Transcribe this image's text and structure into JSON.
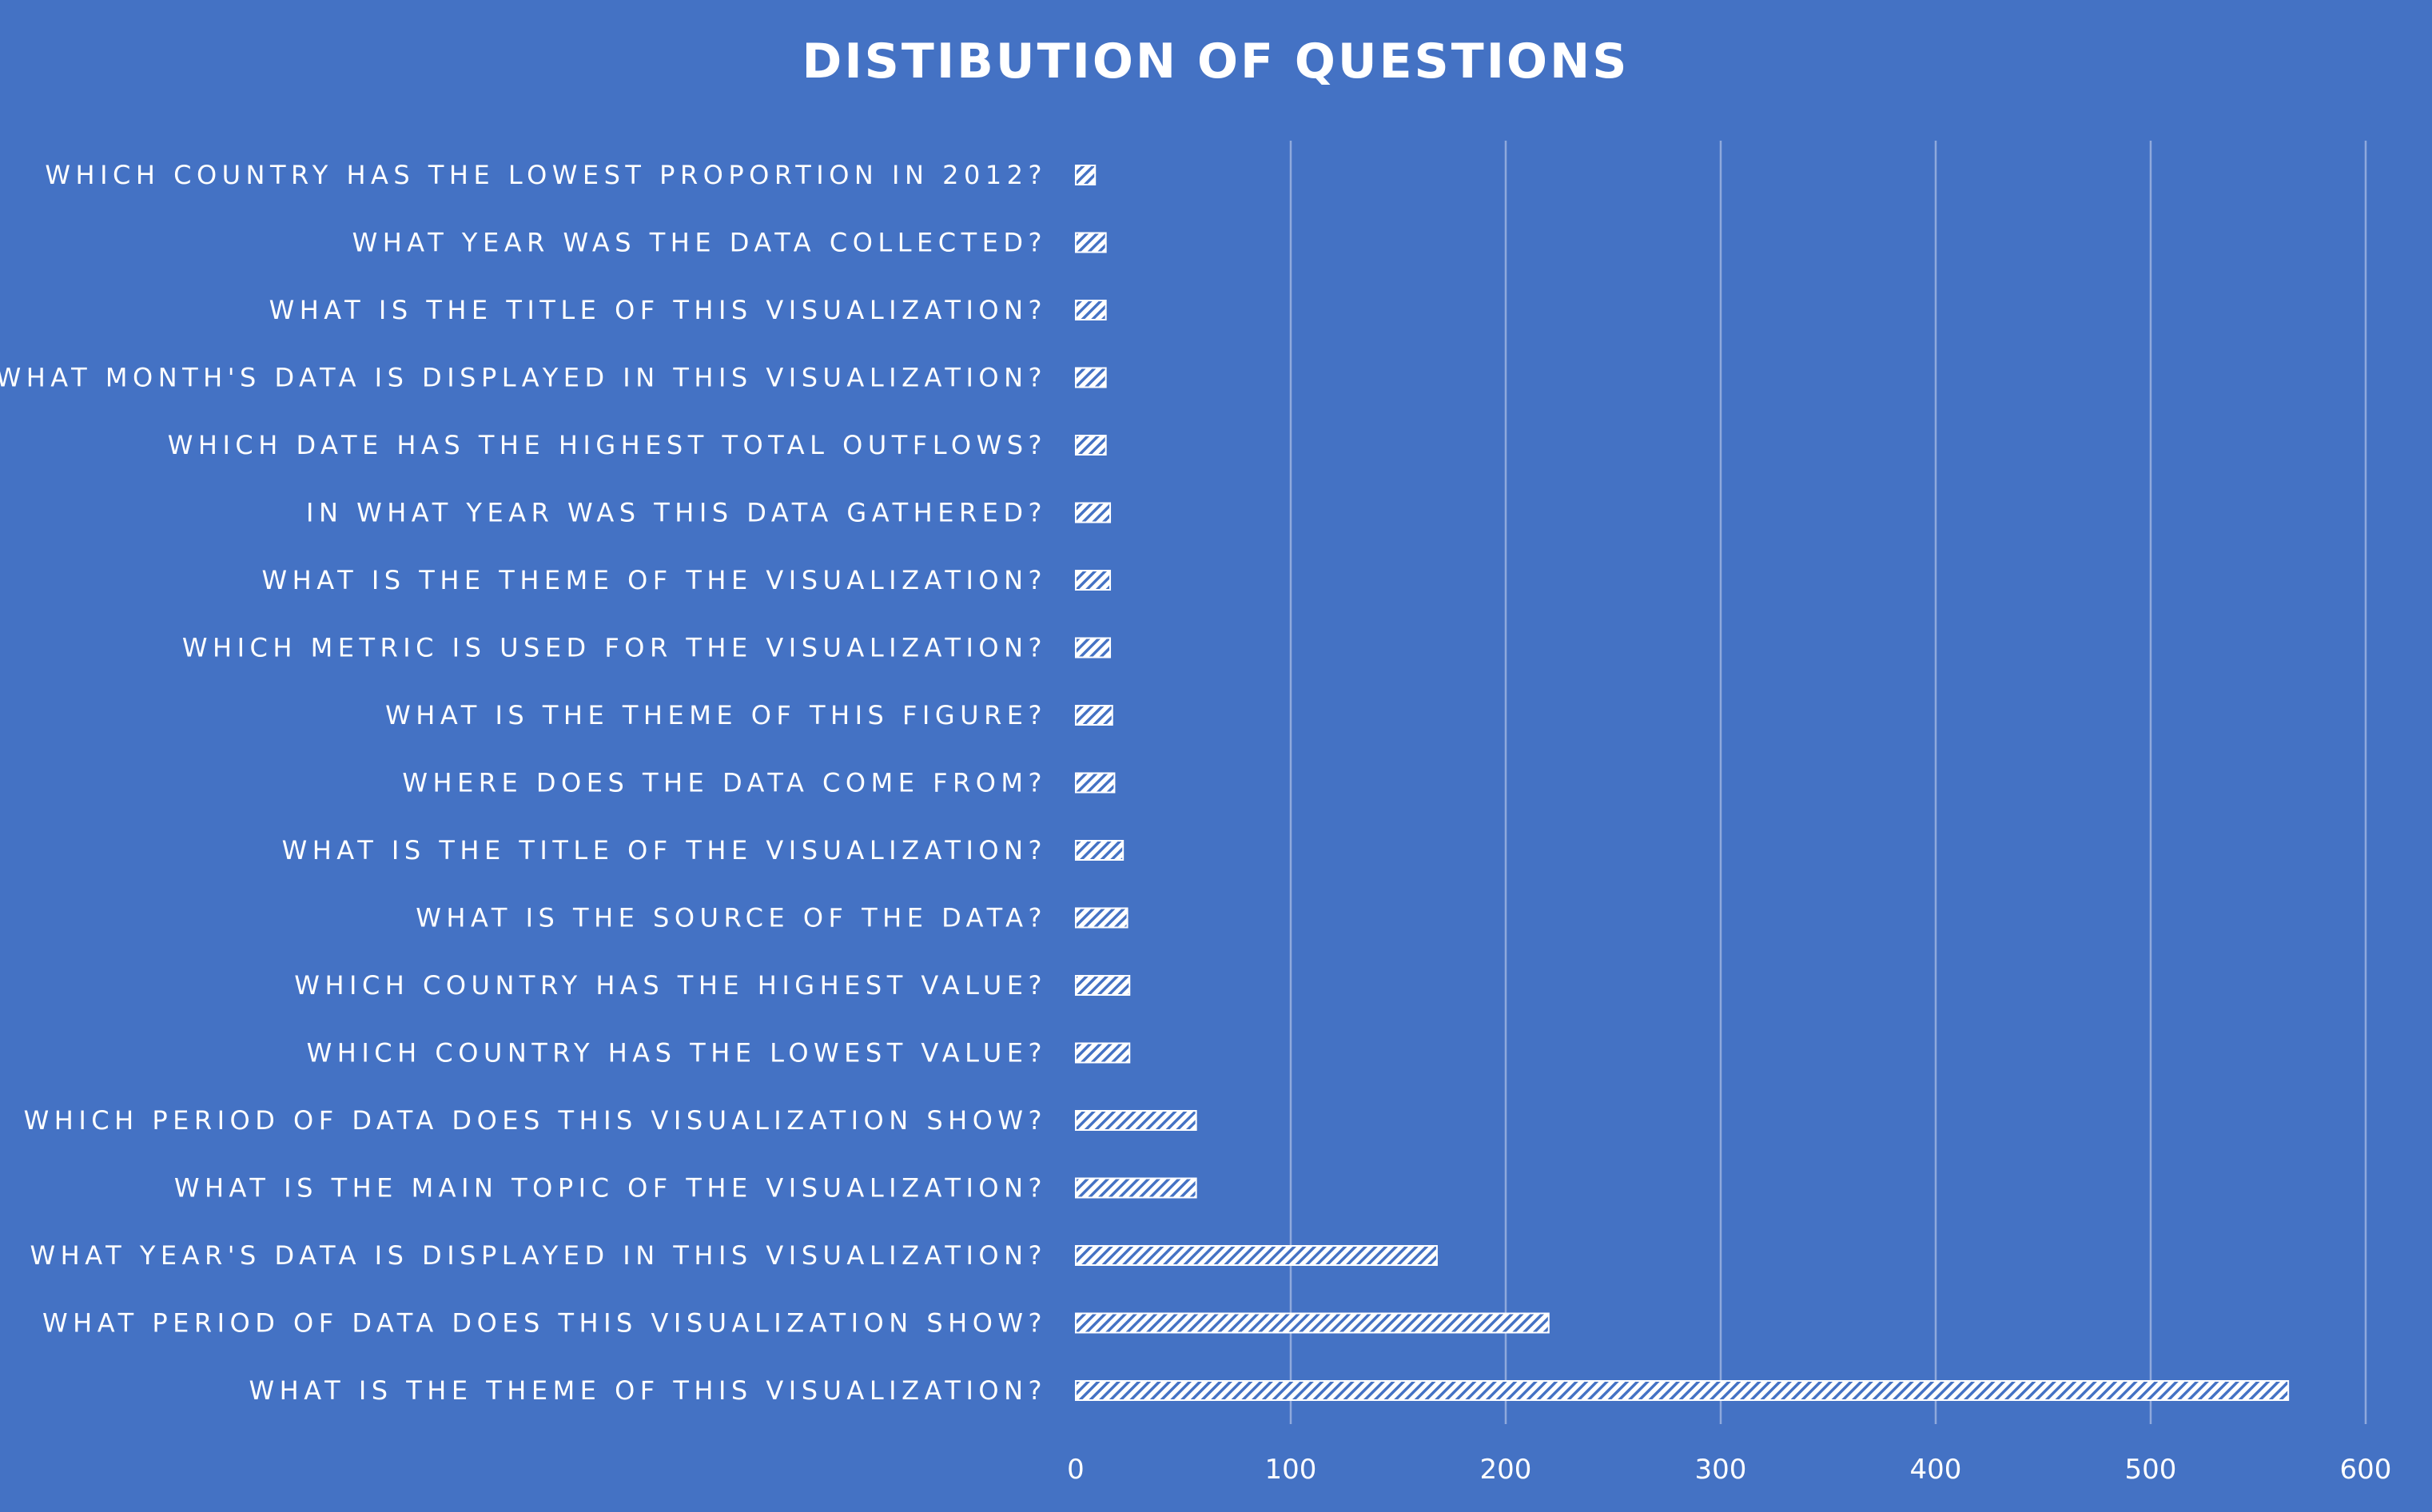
{
  "chart_data": {
    "type": "bar",
    "orientation": "horizontal",
    "title": "DISTIBUTION OF QUESTIONS",
    "xlabel": "",
    "ylabel": "",
    "xlim": [
      0,
      600
    ],
    "x_ticks": [
      0,
      100,
      200,
      300,
      400,
      500,
      600
    ],
    "grid": "vertical",
    "legend": "none",
    "bar_fill": "white-hatched",
    "categories": [
      "WHICH COUNTRY HAS THE LOWEST PROPORTION IN 2012?",
      "WHAT YEAR WAS THE DATA COLLECTED?",
      "WHAT IS THE TITLE OF THIS VISUALIZATION?",
      "WHAT MONTH'S DATA IS DISPLAYED IN THIS VISUALIZATION?",
      "WHICH DATE HAS THE HIGHEST TOTAL OUTFLOWS?",
      "IN WHAT YEAR WAS THIS DATA GATHERED?",
      "WHAT IS THE THEME OF THE VISUALIZATION?",
      "WHICH METRIC IS USED FOR THE VISUALIZATION?",
      "WHAT IS THE THEME OF THIS FIGURE?",
      "WHERE DOES THE DATA COME FROM?",
      "WHAT IS THE TITLE OF THE VISUALIZATION?",
      "WHAT IS THE SOURCE OF THE DATA?",
      "WHICH COUNTRY HAS THE HIGHEST VALUE?",
      "WHICH COUNTRY HAS THE LOWEST VALUE?",
      "WHICH PERIOD OF DATA DOES THIS VISUALIZATION SHOW?",
      "WHAT IS THE MAIN TOPIC OF THE VISUALIZATION?",
      "WHAT YEAR'S DATA IS DISPLAYED IN THIS VISUALIZATION?",
      "WHAT PERIOD OF DATA DOES THIS VISUALIZATION SHOW?",
      "WHAT IS THE THEME OF THIS VISUALIZATION?"
    ],
    "values": [
      9,
      14,
      14,
      14,
      14,
      16,
      16,
      16,
      17,
      18,
      22,
      24,
      25,
      25,
      56,
      56,
      168,
      220,
      564
    ]
  },
  "colors": {
    "background": "#4472c4",
    "bar": "#ffffff",
    "gridline": "#8fa9dc",
    "text": "#ffffff"
  }
}
